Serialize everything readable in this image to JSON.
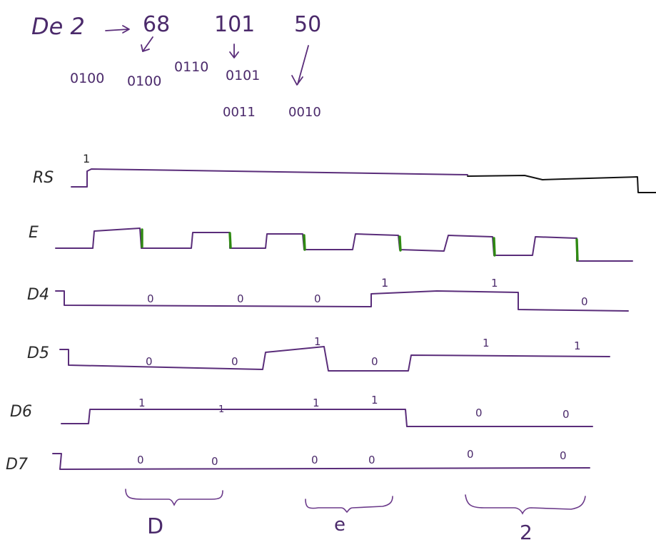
{
  "header": {
    "title": "De 2",
    "values": [
      "68",
      "101",
      "50"
    ],
    "binary_row1": [
      "0100",
      "0100",
      "0110",
      "0101"
    ],
    "binary_row2": [
      "0011",
      "0010"
    ]
  },
  "signals": [
    {
      "name": "RS",
      "levels": "1",
      "bits": [
        "1"
      ]
    },
    {
      "name": "E",
      "levels": "",
      "bits": []
    },
    {
      "name": "D4",
      "bits": [
        "0",
        "0",
        "0",
        "1",
        "1",
        "0"
      ]
    },
    {
      "name": "D5",
      "bits": [
        "0",
        "0",
        "1",
        "0",
        "1",
        "1"
      ]
    },
    {
      "name": "D6",
      "bits": [
        "1",
        "1",
        "1",
        "1",
        "0",
        "0"
      ]
    },
    {
      "name": "D7",
      "bits": [
        "0",
        "0",
        "0",
        "0",
        "0",
        "0"
      ]
    }
  ],
  "groups": [
    "D",
    "e",
    "2"
  ],
  "colors": {
    "ink": "#5a2d7a",
    "pencil": "#111111",
    "edge_marker": "#2f8a12"
  }
}
